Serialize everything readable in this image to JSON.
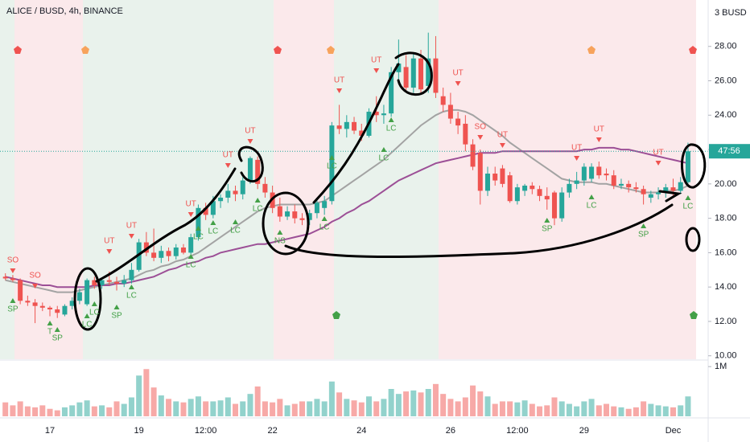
{
  "chart_data": {
    "type": "candlestick",
    "title": "ALICE / BUSD, 4h, BINANCE",
    "unit_label": "3 BUSD",
    "countdown": "47:56",
    "up_color": "#26a69a",
    "down_color": "#ef5350",
    "categories": [
      null,
      null,
      null,
      null,
      null,
      null,
      "17",
      null,
      null,
      null,
      null,
      null,
      null,
      null,
      null,
      null,
      null,
      null,
      "19",
      null,
      null,
      null,
      null,
      null,
      null,
      null,
      null,
      "12:00",
      null,
      null,
      null,
      null,
      null,
      null,
      null,
      null,
      "22",
      null,
      null,
      null,
      null,
      null,
      null,
      null,
      null,
      null,
      null,
      null,
      "24",
      null,
      null,
      null,
      null,
      null,
      null,
      null,
      null,
      null,
      null,
      null,
      "26",
      null,
      null,
      null,
      null,
      null,
      null,
      null,
      null,
      "12:00",
      null,
      null,
      null,
      null,
      null,
      null,
      null,
      null,
      "29",
      null,
      null,
      null,
      null,
      null,
      null,
      null,
      null,
      null,
      null,
      null,
      "Dec",
      null,
      null
    ],
    "open": [
      14.6,
      14.5,
      14.4,
      13.2,
      13.1,
      12.9,
      12.8,
      12.7,
      12.4,
      12.9,
      13.2,
      13.0,
      14.4,
      14.1,
      14.4,
      14.3,
      14.2,
      14.4,
      15.0,
      16.6,
      16.0,
      15.7,
      16.1,
      15.8,
      16.3,
      16.0,
      16.9,
      18.6,
      18.2,
      19.0,
      19.2,
      19.6,
      19.4,
      20.2,
      21.4,
      20.0,
      19.5,
      18.7,
      18.1,
      18.4,
      18.0,
      17.9,
      18.3,
      18.6,
      19.0,
      23.4,
      23.2,
      23.6,
      23.1,
      22.8,
      24.2,
      24.0,
      24.1,
      26.5,
      26.8,
      25.6,
      27.3,
      25.7,
      27.3,
      25.1,
      24.6,
      23.8,
      23.5,
      22.3,
      21.8,
      19.6,
      20.6,
      20.9,
      20.5,
      19.0,
      19.6,
      19.9,
      19.7,
      19.3,
      19.5,
      18.0,
      19.5,
      20.0,
      20.2,
      20.3,
      21.0,
      20.6,
      20.5,
      19.9,
      20.0,
      19.8,
      19.7,
      19.2,
      19.4,
      19.5,
      19.8,
      19.6,
      20.1
    ],
    "high": [
      14.8,
      14.7,
      14.5,
      13.5,
      13.3,
      13.1,
      12.9,
      12.9,
      13.0,
      13.4,
      13.9,
      14.5,
      14.6,
      14.5,
      14.9,
      14.6,
      14.7,
      15.4,
      16.8,
      17.2,
      17.4,
      16.4,
      16.3,
      16.5,
      16.5,
      17.1,
      18.8,
      18.9,
      19.3,
      19.4,
      20.0,
      19.9,
      20.4,
      21.6,
      21.6,
      20.4,
      19.9,
      19.2,
      18.7,
      18.8,
      18.3,
      18.5,
      19.2,
      19.3,
      23.6,
      24.6,
      24.0,
      23.9,
      23.5,
      24.4,
      25.1,
      24.6,
      26.8,
      28.4,
      27.5,
      27.6,
      27.8,
      28.8,
      28.6,
      25.6,
      25.3,
      24.2,
      24.0,
      22.6,
      22.0,
      21.0,
      21.0,
      21.1,
      20.7,
      20.0,
      20.0,
      20.1,
      19.9,
      19.8,
      19.6,
      19.8,
      20.3,
      20.7,
      21.2,
      21.2,
      21.3,
      20.9,
      20.8,
      20.3,
      20.2,
      20.1,
      19.9,
      19.6,
      19.8,
      20.0,
      20.3,
      20.4,
      22.4
    ],
    "low": [
      14.4,
      14.3,
      13.0,
      12.9,
      11.9,
      12.6,
      12.3,
      12.2,
      12.3,
      12.7,
      13.0,
      12.9,
      13.9,
      13.9,
      14.1,
      13.8,
      14.0,
      14.2,
      14.9,
      15.8,
      15.5,
      15.4,
      15.5,
      15.6,
      15.9,
      15.9,
      16.7,
      17.9,
      18.0,
      18.6,
      18.9,
      19.0,
      19.1,
      20.0,
      19.7,
      19.2,
      18.3,
      17.8,
      17.9,
      17.7,
      17.6,
      17.6,
      18.0,
      18.2,
      18.8,
      22.9,
      22.7,
      22.9,
      22.5,
      22.7,
      23.6,
      23.5,
      23.9,
      26.1,
      25.4,
      25.3,
      25.2,
      25.3,
      25.0,
      24.2,
      23.5,
      22.9,
      21.9,
      20.8,
      18.8,
      19.3,
      19.9,
      19.8,
      18.9,
      18.8,
      19.3,
      19.4,
      19.0,
      18.5,
      17.6,
      17.8,
      19.2,
      19.7,
      19.9,
      20.1,
      20.3,
      20.2,
      19.7,
      19.7,
      19.5,
      19.5,
      18.8,
      18.9,
      19.1,
      19.2,
      19.3,
      19.4,
      19.9
    ],
    "close": [
      14.5,
      14.4,
      13.2,
      13.1,
      12.9,
      12.8,
      12.7,
      12.5,
      12.9,
      13.2,
      13.7,
      14.4,
      14.1,
      14.4,
      14.3,
      14.2,
      14.4,
      15.0,
      16.6,
      16.0,
      15.7,
      16.1,
      15.8,
      16.3,
      16.0,
      16.9,
      18.6,
      18.2,
      19.0,
      19.2,
      19.6,
      19.4,
      20.2,
      21.5,
      20.0,
      19.5,
      18.6,
      18.1,
      18.4,
      18.0,
      17.9,
      18.3,
      18.9,
      19.0,
      23.4,
      23.2,
      23.6,
      23.1,
      22.8,
      24.2,
      24.0,
      24.1,
      26.5,
      27.0,
      25.6,
      27.3,
      25.5,
      27.3,
      25.3,
      24.6,
      23.8,
      23.4,
      22.3,
      21.0,
      19.6,
      20.6,
      20.2,
      20.0,
      19.0,
      19.8,
      19.9,
      19.7,
      19.3,
      19.1,
      18.0,
      19.5,
      20.0,
      20.2,
      21.0,
      21.0,
      20.5,
      20.5,
      19.9,
      20.0,
      19.8,
      19.7,
      19.4,
      19.4,
      19.5,
      19.8,
      19.6,
      20.1,
      21.9
    ],
    "series": [
      {
        "color": "#a3a3a3",
        "values": [
          14.4,
          14.3,
          14.2,
          14.1,
          14.0,
          13.9,
          13.8,
          13.7,
          13.7,
          13.7,
          13.8,
          13.9,
          14.0,
          14.1,
          14.2,
          14.3,
          14.4,
          14.5,
          14.7,
          14.9,
          15.0,
          15.2,
          15.3,
          15.5,
          15.6,
          15.8,
          16.0,
          16.3,
          16.6,
          16.9,
          17.2,
          17.5,
          17.8,
          18.1,
          18.4,
          18.6,
          18.7,
          18.8,
          18.8,
          18.8,
          18.8,
          18.8,
          18.9,
          19.0,
          19.3,
          19.6,
          19.9,
          20.2,
          20.5,
          20.8,
          21.1,
          21.4,
          21.8,
          22.2,
          22.6,
          23.0,
          23.4,
          23.7,
          24.0,
          24.2,
          24.3,
          24.3,
          24.2,
          24.0,
          23.7,
          23.4,
          23.1,
          22.8,
          22.4,
          22.1,
          21.8,
          21.5,
          21.2,
          20.9,
          20.6,
          20.3,
          20.2,
          20.1,
          20.1,
          20.1,
          20.0,
          20.0,
          19.9,
          19.8,
          19.7,
          19.6,
          19.5,
          19.5,
          19.5,
          19.6,
          19.6,
          19.7,
          19.9
        ]
      },
      {
        "color": "#9c4f96",
        "values": [
          14.6,
          14.5,
          14.4,
          14.3,
          14.2,
          14.1,
          14.1,
          14.0,
          14.0,
          14.0,
          14.0,
          14.0,
          14.1,
          14.1,
          14.1,
          14.2,
          14.2,
          14.3,
          14.4,
          14.5,
          14.6,
          14.8,
          15.0,
          15.1,
          15.3,
          15.4,
          15.5,
          15.7,
          15.8,
          16.0,
          16.1,
          16.2,
          16.3,
          16.4,
          16.5,
          16.5,
          16.6,
          16.7,
          16.8,
          16.9,
          17.0,
          17.1,
          17.3,
          17.5,
          17.8,
          18.0,
          18.3,
          18.5,
          18.8,
          19.0,
          19.3,
          19.6,
          19.9,
          20.2,
          20.4,
          20.6,
          20.8,
          21.0,
          21.2,
          21.3,
          21.4,
          21.5,
          21.6,
          21.7,
          21.8,
          21.8,
          21.8,
          21.9,
          21.9,
          21.9,
          21.9,
          21.9,
          21.9,
          21.9,
          21.9,
          21.9,
          21.9,
          21.9,
          22.0,
          22.0,
          22.1,
          22.1,
          22.1,
          22.0,
          22.0,
          21.9,
          21.8,
          21.7,
          21.6,
          21.5,
          21.4,
          21.3,
          21.2
        ]
      }
    ],
    "ylim": [
      9.8,
      30.7
    ],
    "yticks": [
      {
        "value": 10,
        "label": "10.00"
      },
      {
        "value": 12,
        "label": "12.00"
      },
      {
        "value": 14,
        "label": "14.00"
      },
      {
        "value": 16,
        "label": "16.00"
      },
      {
        "value": 18,
        "label": "18.00"
      },
      {
        "value": 20,
        "label": "20.00"
      },
      {
        "value": 22,
        "label": "22.00"
      },
      {
        "value": 24,
        "label": "24.00"
      },
      {
        "value": 26,
        "label": "26.00"
      },
      {
        "value": 28,
        "label": "28.00"
      }
    ],
    "annotations": [
      "SO",
      "SO",
      "SP",
      "T",
      "SP",
      "LC",
      "LC",
      "UT",
      "SP",
      "LC",
      "UT",
      "UT",
      "LC",
      "LC",
      "LC",
      "UT",
      "LC",
      "UT",
      "LC",
      "NS",
      "LC",
      "LC",
      "UT",
      "UT",
      "LC",
      "LC",
      "UT",
      "SO",
      "UT",
      "SP",
      "LC",
      "UT",
      "UT",
      "SP",
      "UT",
      "LC"
    ],
    "volume": {
      "values": [
        0.28,
        0.22,
        0.3,
        0.2,
        0.18,
        0.22,
        0.15,
        0.12,
        0.18,
        0.22,
        0.28,
        0.32,
        0.2,
        0.22,
        0.18,
        0.3,
        0.25,
        0.38,
        0.82,
        0.95,
        0.58,
        0.42,
        0.35,
        0.3,
        0.28,
        0.35,
        0.4,
        0.3,
        0.3,
        0.32,
        0.38,
        0.25,
        0.3,
        0.45,
        0.6,
        0.3,
        0.28,
        0.35,
        0.22,
        0.25,
        0.3,
        0.3,
        0.35,
        0.3,
        0.7,
        0.48,
        0.35,
        0.32,
        0.28,
        0.4,
        0.3,
        0.35,
        0.55,
        0.45,
        0.5,
        0.52,
        0.48,
        0.55,
        0.65,
        0.45,
        0.35,
        0.3,
        0.38,
        0.62,
        0.5,
        0.4,
        0.25,
        0.3,
        0.3,
        0.28,
        0.32,
        0.25,
        0.2,
        0.22,
        0.38,
        0.3,
        0.25,
        0.2,
        0.3,
        0.35,
        0.22,
        0.25,
        0.2,
        0.18,
        0.15,
        0.18,
        0.3,
        0.25,
        0.22,
        0.2,
        0.18,
        0.22,
        0.4
      ],
      "ylim": [
        0,
        1.1
      ],
      "yticks": [
        {
          "value": 1,
          "label": "1M"
        }
      ]
    }
  }
}
